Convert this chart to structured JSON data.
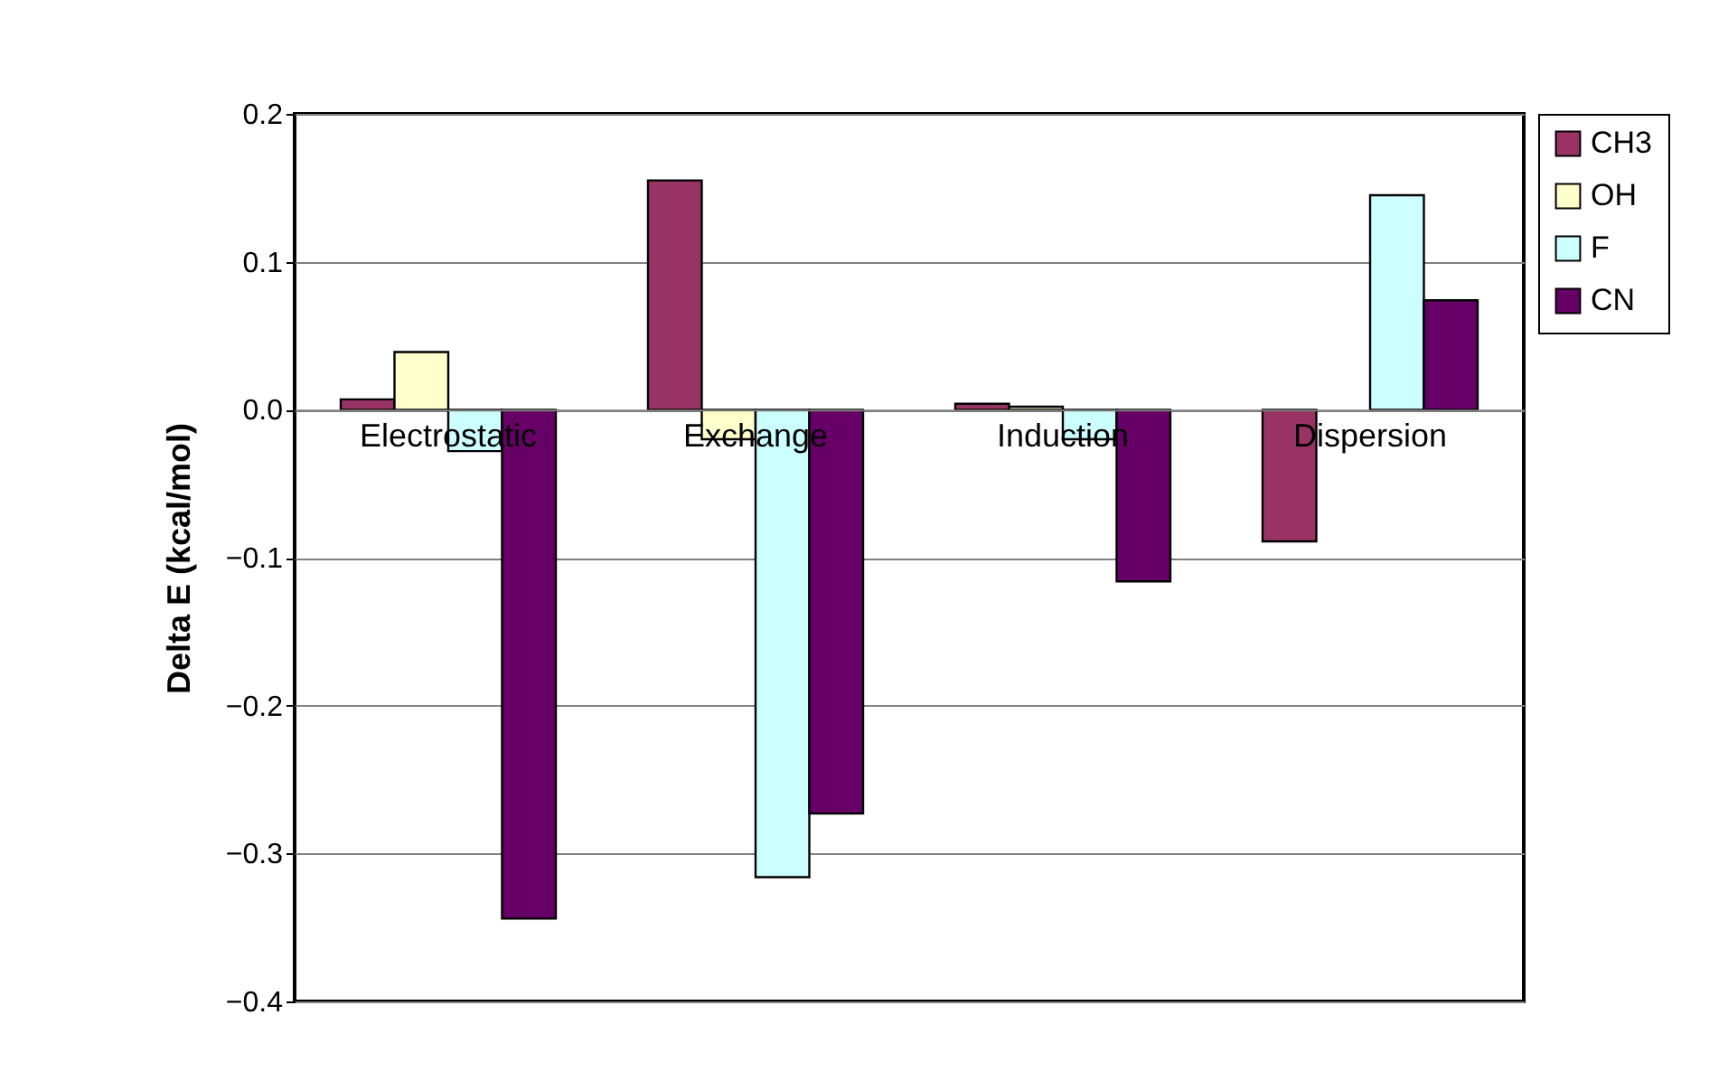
{
  "chart_data": {
    "type": "bar",
    "ylabel": "Delta E (kcal/mol)",
    "categories": [
      "Electrostatic",
      "Exchange",
      "Induction",
      "Dispersion"
    ],
    "series": [
      {
        "name": "CH3",
        "color": "#993366",
        "values": [
          0.007,
          0.155,
          0.004,
          -0.089
        ]
      },
      {
        "name": "OH",
        "color": "#ffffcc",
        "values": [
          0.039,
          -0.02,
          0.002,
          null
        ]
      },
      {
        "name": "F",
        "color": "#ccffff",
        "values": [
          -0.028,
          -0.316,
          -0.02,
          0.145
        ]
      },
      {
        "name": "CN",
        "color": "#660066",
        "values": [
          -0.344,
          -0.273,
          -0.116,
          0.074
        ]
      }
    ],
    "ylim": [
      -0.4,
      0.2
    ],
    "yticks": [
      -0.4,
      -0.3,
      -0.2,
      -0.1,
      {
        "value": 0,
        "label": "0.0"
      },
      0.1,
      0.2
    ],
    "grid": "y",
    "legend": "right"
  }
}
